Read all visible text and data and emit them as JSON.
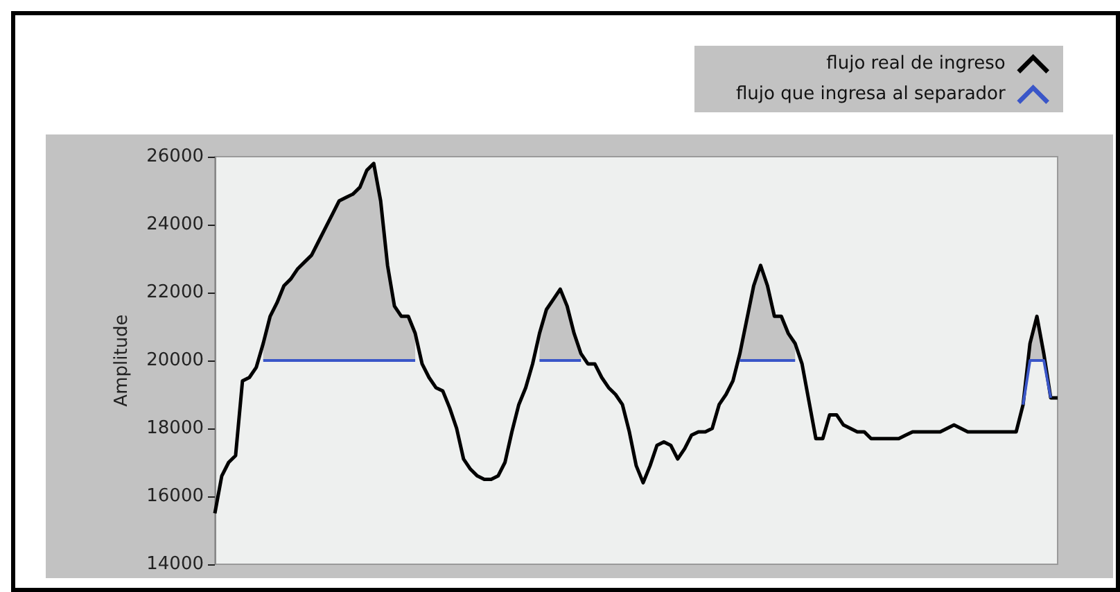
{
  "chart_data": {
    "type": "line",
    "ylabel": "Amplitude",
    "categories": [
      null,
      null,
      null,
      null,
      null,
      null,
      null,
      null,
      null,
      null,
      null,
      null,
      null,
      null,
      null,
      null,
      null,
      null,
      null,
      null,
      null,
      null,
      null,
      null,
      null,
      null,
      null,
      null,
      null,
      null,
      null,
      null,
      null,
      null,
      null,
      null,
      null,
      null,
      null,
      null,
      null,
      null,
      null,
      null,
      null,
      null,
      null,
      null,
      null,
      null,
      null,
      null,
      null,
      null,
      null,
      null,
      null,
      null,
      null,
      null,
      null,
      null,
      null,
      null,
      null,
      null,
      null,
      null,
      null,
      null,
      null,
      null,
      null,
      null,
      null,
      null,
      null,
      null,
      null,
      null,
      null,
      null,
      null,
      null,
      null,
      null,
      null,
      null,
      null,
      null,
      null,
      null,
      null,
      null,
      null,
      null,
      null,
      null,
      null,
      null,
      null,
      null,
      null,
      null,
      null,
      null,
      null,
      null,
      null,
      null,
      null,
      null,
      null,
      null,
      null,
      null,
      null,
      null,
      null,
      null,
      null,
      null,
      null
    ],
    "ylim": [
      14000,
      26000
    ],
    "yticks": [
      14000,
      16000,
      18000,
      20000,
      22000,
      24000,
      26000
    ],
    "tick_labels": "y",
    "grid": false,
    "legend": "top right",
    "marker": "none",
    "line_style": "solid",
    "series": [
      {
        "name": "flujo real de ingreso",
        "color": "#000000",
        "values": [
          15500,
          16600,
          17000,
          17200,
          19400,
          19500,
          19800,
          20500,
          21300,
          21700,
          22200,
          22400,
          22700,
          22900,
          23100,
          23500,
          23900,
          24300,
          24700,
          24800,
          24900,
          25100,
          25600,
          25800,
          24700,
          22800,
          21600,
          21300,
          21300,
          20800,
          19900,
          19500,
          19200,
          19100,
          18600,
          18000,
          17100,
          16800,
          16600,
          16500,
          16500,
          16600,
          17000,
          17900,
          18700,
          19200,
          19900,
          20800,
          21500,
          21800,
          22100,
          21600,
          20800,
          20200,
          19900,
          19900,
          19500,
          19200,
          19000,
          18700,
          17900,
          16900,
          16400,
          16900,
          17500,
          17600,
          17500,
          17100,
          17400,
          17800,
          17900,
          17900,
          18000,
          18700,
          19000,
          19400,
          20200,
          21200,
          22200,
          22800,
          22200,
          21300,
          21300,
          20800,
          20500,
          19900,
          18800,
          17700,
          17700,
          18400,
          18400,
          18100,
          18000,
          17900,
          17900,
          17700,
          17700,
          17700,
          17700,
          17700,
          17800,
          17900,
          17900,
          17900,
          17900,
          17900,
          18000,
          18100,
          18000,
          17900,
          17900,
          17900,
          17900,
          17900,
          17900,
          17900,
          17900,
          18700,
          20500,
          21300,
          20200,
          18900,
          18900
        ],
        "lower": [
          null,
          null,
          null,
          null,
          null,
          null,
          null,
          20000,
          20000,
          20000,
          20000,
          20000,
          20000,
          20000,
          20000,
          20000,
          20000,
          20000,
          20000,
          20000,
          20000,
          20000,
          20000,
          20000,
          20000,
          20000,
          20000,
          20000,
          20000,
          20000,
          null,
          null,
          null,
          null,
          null,
          null,
          null,
          null,
          null,
          null,
          null,
          null,
          null,
          null,
          null,
          null,
          null,
          20000,
          20000,
          20000,
          20000,
          20000,
          20000,
          20000,
          null,
          null,
          null,
          null,
          null,
          null,
          null,
          null,
          null,
          null,
          null,
          null,
          null,
          null,
          null,
          null,
          null,
          null,
          null,
          null,
          null,
          null,
          20000,
          20000,
          20000,
          20000,
          20000,
          20000,
          20000,
          20000,
          20000,
          null,
          null,
          null,
          null,
          null,
          null,
          null,
          null,
          null,
          null,
          null,
          null,
          null,
          null,
          null,
          null,
          null,
          null,
          null,
          null,
          null,
          null,
          null,
          null,
          null,
          null,
          null,
          null,
          null,
          null,
          null,
          null,
          null,
          20000,
          20000,
          20000,
          null,
          null
        ],
        "upper": [
          null,
          null,
          null,
          null,
          null,
          null,
          null,
          20500,
          21300,
          21700,
          22200,
          22400,
          22700,
          22900,
          23100,
          23500,
          23900,
          24300,
          24700,
          24800,
          24900,
          25100,
          25600,
          25800,
          24700,
          22800,
          21600,
          21300,
          21300,
          20800,
          null,
          null,
          null,
          null,
          null,
          null,
          null,
          null,
          null,
          null,
          null,
          null,
          null,
          null,
          null,
          null,
          null,
          20800,
          21500,
          21800,
          22100,
          21600,
          20800,
          20200,
          null,
          null,
          null,
          null,
          null,
          null,
          null,
          null,
          null,
          null,
          null,
          null,
          null,
          null,
          null,
          null,
          null,
          null,
          null,
          null,
          null,
          null,
          20200,
          21200,
          22200,
          22800,
          22200,
          21300,
          21300,
          20800,
          20500,
          null,
          null,
          null,
          null,
          null,
          null,
          null,
          null,
          null,
          null,
          null,
          null,
          null,
          null,
          null,
          null,
          null,
          null,
          null,
          null,
          null,
          null,
          null,
          null,
          null,
          null,
          null,
          null,
          null,
          null,
          null,
          null,
          null,
          20500,
          21300,
          20200,
          null,
          null
        ]
      },
      {
        "name": "flujo que ingresa al separador",
        "color": "#3a56c8",
        "values": [
          null,
          null,
          null,
          null,
          null,
          null,
          null,
          20000,
          20000,
          20000,
          20000,
          20000,
          20000,
          20000,
          20000,
          20000,
          20000,
          20000,
          20000,
          20000,
          20000,
          20000,
          20000,
          20000,
          20000,
          20000,
          20000,
          20000,
          20000,
          20000,
          null,
          null,
          null,
          null,
          null,
          null,
          null,
          null,
          null,
          null,
          null,
          null,
          null,
          null,
          null,
          null,
          null,
          20000,
          20000,
          20000,
          20000,
          20000,
          20000,
          20000,
          null,
          null,
          null,
          null,
          null,
          null,
          null,
          null,
          null,
          null,
          null,
          null,
          null,
          null,
          null,
          null,
          null,
          null,
          null,
          null,
          null,
          null,
          20000,
          20000,
          20000,
          20000,
          20000,
          20000,
          20000,
          20000,
          20000,
          null,
          null,
          null,
          null,
          null,
          null,
          null,
          null,
          null,
          null,
          null,
          null,
          null,
          null,
          null,
          null,
          null,
          null,
          null,
          null,
          null,
          null,
          null,
          null,
          null,
          null,
          null,
          null,
          null,
          null,
          null,
          null,
          18700,
          20000,
          20000,
          20000,
          18900,
          null
        ]
      }
    ]
  }
}
